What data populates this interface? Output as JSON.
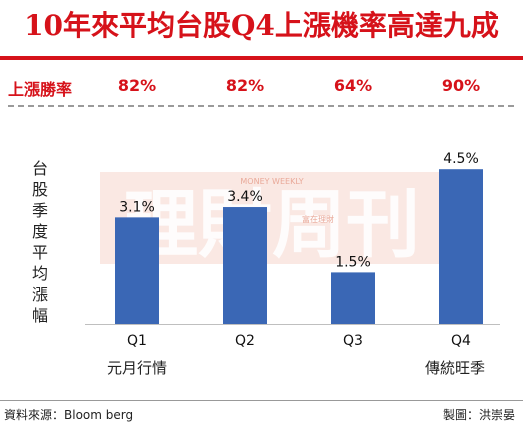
{
  "title": "10年來平均台股Q4上漲機率高達九成",
  "win_rate": {
    "label": "上漲勝率",
    "values": [
      "82%",
      "82%",
      "64%",
      "90%"
    ]
  },
  "watermark": {
    "main": "理財周刊",
    "small_top": "MONEY WEEKLY",
    "small_mid": "富在理財"
  },
  "chart_data": {
    "type": "bar",
    "title": "10年來平均台股Q4上漲機率高達九成",
    "ylabel": "台股季度平均漲幅",
    "categories": [
      "Q1",
      "Q2",
      "Q3",
      "Q4"
    ],
    "values": [
      3.1,
      3.4,
      1.5,
      4.5
    ],
    "data_labels": [
      "3.1%",
      "3.4%",
      "1.5%",
      "4.5%"
    ],
    "subcategory_labels": [
      "元月行情",
      "",
      "",
      "傳統旺季"
    ],
    "ylim": [
      0,
      5
    ],
    "bar_color": "#3a67b5",
    "grid": false
  },
  "footer": {
    "source": "資料來源：Bloom berg",
    "credit": "製圖：洪崇晏"
  },
  "colors": {
    "accent": "#d6121a",
    "bar": "#3a67b5"
  }
}
